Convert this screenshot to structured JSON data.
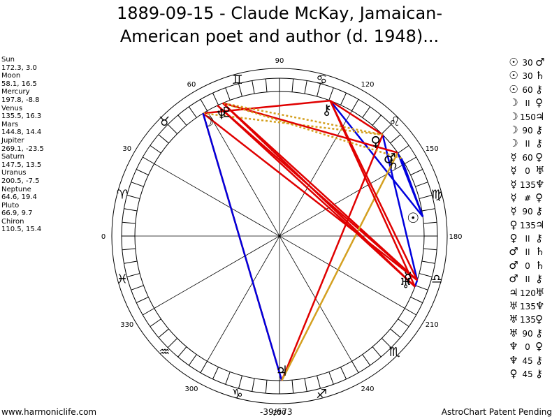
{
  "title": {
    "line1": "1889-09-15 - Claude McKay, Jamaican-",
    "line2": "American poet and author (d. 1948)..."
  },
  "planets": [
    {
      "name": "Sun",
      "glyph": "☉",
      "values": "172.3, 3.0",
      "longitude": 172.3,
      "color": "#000000"
    },
    {
      "name": "Moon",
      "glyph": "☽",
      "values": "58.1, 16.5",
      "longitude": 58.1,
      "color": "#000000"
    },
    {
      "name": "Mercury",
      "glyph": "☿",
      "values": "197.8, -8.8",
      "longitude": 197.8,
      "color": "#000000"
    },
    {
      "name": "Venus",
      "glyph": "♀",
      "values": "135.5, 16.3",
      "longitude": 135.5,
      "color": "#000000"
    },
    {
      "name": "Mars",
      "glyph": "♂",
      "values": "144.8, 14.4",
      "longitude": 144.8,
      "color": "#000000"
    },
    {
      "name": "Jupiter",
      "glyph": "♃",
      "values": "269.1, -23.5",
      "longitude": 269.1,
      "color": "#000000"
    },
    {
      "name": "Saturn",
      "glyph": "♄",
      "values": "147.5, 13.5",
      "longitude": 147.5,
      "color": "#000000"
    },
    {
      "name": "Uranus",
      "glyph": "♅",
      "values": "200.5, -7.5",
      "longitude": 200.5,
      "color": "#000000"
    },
    {
      "name": "Neptune",
      "glyph": "♆",
      "values": "64.6, 19.4",
      "longitude": 64.6,
      "color": "#000000"
    },
    {
      "name": "Pluto",
      "glyph": "♇",
      "values": "66.9, 9.7",
      "longitude": 66.9,
      "color": "#000000"
    },
    {
      "name": "Chiron",
      "glyph": "⚷",
      "values": "110.5, 15.4",
      "longitude": 110.5,
      "color": "#000000"
    }
  ],
  "wheel": {
    "degree_labels": [
      {
        "deg": 0,
        "text": "0"
      },
      {
        "deg": 30,
        "text": "30"
      },
      {
        "deg": 60,
        "text": "60"
      },
      {
        "deg": 90,
        "text": "90"
      },
      {
        "deg": 120,
        "text": "120"
      },
      {
        "deg": 150,
        "text": "150"
      },
      {
        "deg": 180,
        "text": "180"
      },
      {
        "deg": 210,
        "text": "210"
      },
      {
        "deg": 240,
        "text": "240"
      },
      {
        "deg": 270,
        "text": "270"
      },
      {
        "deg": 300,
        "text": "300"
      },
      {
        "deg": 330,
        "text": "330"
      }
    ],
    "signs": [
      "♈",
      "♉",
      "♊",
      "♋",
      "♌",
      "♍",
      "♎",
      "♏",
      "♐",
      "♑",
      "♒",
      "♓"
    ],
    "sign_names": [
      "aries",
      "taurus",
      "gemini",
      "cancer",
      "leo",
      "virgo",
      "libra",
      "scorpio",
      "sagittarius",
      "capricorn",
      "aquarius",
      "pisces"
    ]
  },
  "aspects_drawn": [
    {
      "a": "Sun",
      "b": "Mars",
      "angle": 30,
      "color": "#0000dd",
      "style": "solid"
    },
    {
      "a": "Sun",
      "b": "Saturn",
      "angle": 30,
      "color": "#0000dd",
      "style": "solid"
    },
    {
      "a": "Sun",
      "b": "Chiron",
      "angle": 60,
      "color": "#0000dd",
      "style": "solid"
    },
    {
      "a": "Moon",
      "b": "Mercury",
      "angle": 150,
      "color": "#e00000",
      "style": "solid"
    },
    {
      "a": "Moon",
      "b": "Jupiter",
      "angle": 150,
      "color": "#e00000",
      "style": "solid"
    },
    {
      "a": "Moon",
      "b": "Chiron",
      "angle": 90,
      "color": "#e00000",
      "style": "solid"
    },
    {
      "a": "Moon",
      "b": "Venus",
      "angle": "parallel",
      "color": "#d4a020",
      "style": "dotted"
    },
    {
      "a": "Moon",
      "b": "Jupiter",
      "angle": 210,
      "color": "#0000dd",
      "style": "solid"
    },
    {
      "a": "Mercury",
      "b": "Venus",
      "angle": 60,
      "color": "#0000dd",
      "style": "solid"
    },
    {
      "a": "Mercury",
      "b": "Uranus",
      "angle": 0,
      "color": "#0000dd",
      "style": "solid"
    },
    {
      "a": "Mercury",
      "b": "Neptune",
      "angle": 135,
      "color": "#e00000",
      "style": "solid"
    },
    {
      "a": "Mercury",
      "b": "Pluto",
      "angle": 135,
      "color": "#e00000",
      "style": "solid"
    },
    {
      "a": "Venus",
      "b": "Jupiter",
      "angle": 135,
      "color": "#e00000",
      "style": "solid"
    },
    {
      "a": "Venus",
      "b": "Chiron",
      "angle": 90,
      "color": "#e00000",
      "style": "solid"
    },
    {
      "a": "Venus",
      "b": "Pluto",
      "angle": "parallel",
      "color": "#d4a020",
      "style": "dotted"
    },
    {
      "a": "Mars",
      "b": "Jupiter",
      "angle": 120,
      "color": "#d4a020",
      "style": "solid"
    },
    {
      "a": "Mars",
      "b": "Pluto",
      "angle": 90,
      "color": "#e00000",
      "style": "solid"
    },
    {
      "a": "Uranus",
      "b": "Neptune",
      "angle": 135,
      "color": "#e00000",
      "style": "solid"
    },
    {
      "a": "Uranus",
      "b": "Pluto",
      "angle": 135,
      "color": "#e00000",
      "style": "solid"
    },
    {
      "a": "Uranus",
      "b": "Chiron",
      "angle": 90,
      "color": "#e00000",
      "style": "solid"
    },
    {
      "a": "Mercury",
      "b": "Chiron",
      "angle": 90,
      "color": "#e00000",
      "style": "solid"
    },
    {
      "a": "Saturn",
      "b": "Pluto",
      "angle": "parallel",
      "color": "#d4a020",
      "style": "dotted"
    },
    {
      "a": "Uranus",
      "b": "Pluto",
      "angle": "parallel",
      "color": "#e00000",
      "style": "dotted"
    }
  ],
  "aspect_list": [
    {
      "p1": "☉",
      "angle": "30",
      "p2": "♂"
    },
    {
      "p1": "☉",
      "angle": "30",
      "p2": "♄"
    },
    {
      "p1": "☉",
      "angle": "60",
      "p2": "⚷"
    },
    {
      "p1": "☽",
      "angle": "II",
      "p2": "♀"
    },
    {
      "p1": "☽",
      "angle": "150",
      "p2": "♃"
    },
    {
      "p1": "☽",
      "angle": "90",
      "p2": "⚷"
    },
    {
      "p1": "☽",
      "angle": "II",
      "p2": "⚷"
    },
    {
      "p1": "☿",
      "angle": "60",
      "p2": "♀"
    },
    {
      "p1": "☿",
      "angle": "0",
      "p2": "♅"
    },
    {
      "p1": "☿",
      "angle": "135",
      "p2": "♆"
    },
    {
      "p1": "☿",
      "angle": "#",
      "p2": "♀"
    },
    {
      "p1": "☿",
      "angle": "90",
      "p2": "⚷"
    },
    {
      "p1": "♀",
      "angle": "135",
      "p2": "♃"
    },
    {
      "p1": "♀",
      "angle": "II",
      "p2": "⚷"
    },
    {
      "p1": "♂",
      "angle": "II",
      "p2": "♄"
    },
    {
      "p1": "♂",
      "angle": "0",
      "p2": "♄"
    },
    {
      "p1": "♂",
      "angle": "II",
      "p2": "⚷"
    },
    {
      "p1": "♃",
      "angle": "120",
      "p2": "♅"
    },
    {
      "p1": "♅",
      "angle": "135",
      "p2": "♆"
    },
    {
      "p1": "♅",
      "angle": "135",
      "p2": "♀"
    },
    {
      "p1": "♅",
      "angle": "90",
      "p2": "⚷"
    },
    {
      "p1": "♆",
      "angle": "0",
      "p2": "♀"
    },
    {
      "p1": "♆",
      "angle": "45",
      "p2": "⚷"
    },
    {
      "p1": "♀",
      "angle": "45",
      "p2": "⚷"
    }
  ],
  "footer": {
    "left": "www.harmoniclife.com",
    "center": "-39/673",
    "right": "AstroChart Patent Pending"
  }
}
